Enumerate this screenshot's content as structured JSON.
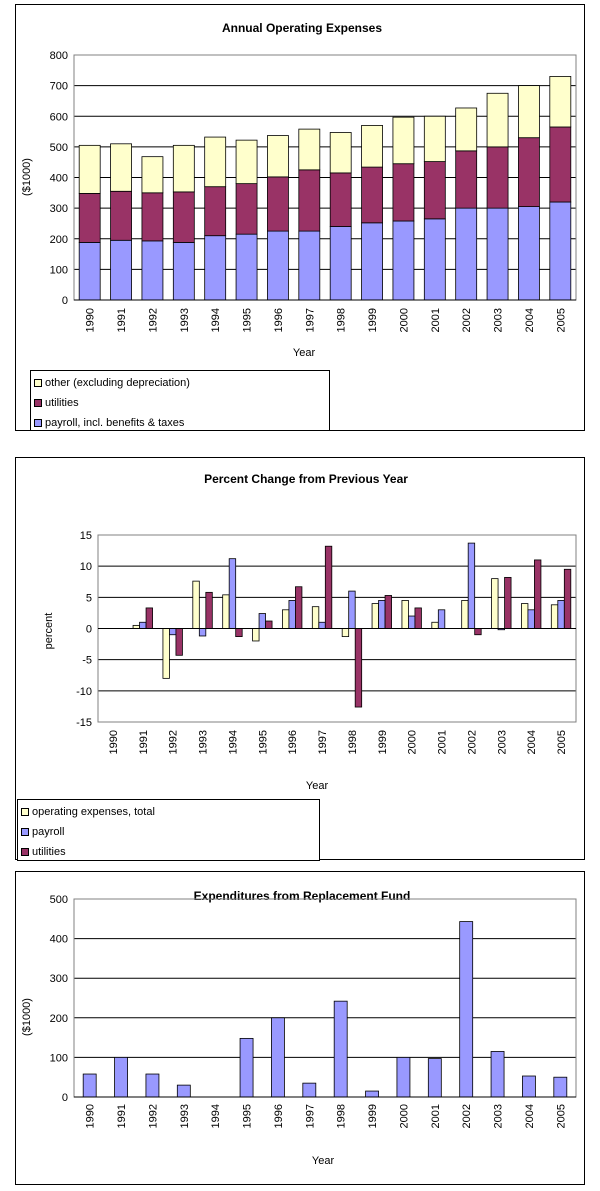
{
  "chart_data": [
    {
      "type": "bar",
      "stacked": true,
      "title": "Annual Operating Expenses",
      "xlabel": "Year",
      "ylabel": "($1000)",
      "ylim": [
        0,
        800
      ],
      "yticks": [
        0,
        100,
        200,
        300,
        400,
        500,
        600,
        700,
        800
      ],
      "grid": true,
      "legend_position": "bottom",
      "categories": [
        "1990",
        "1991",
        "1992",
        "1993",
        "1994",
        "1995",
        "1996",
        "1997",
        "1998",
        "1999",
        "2000",
        "2001",
        "2002",
        "2003",
        "2004",
        "2005"
      ],
      "series": [
        {
          "name": "payroll, incl. benefits & taxes",
          "color": "#9999ff",
          "values": [
            188,
            195,
            193,
            188,
            210,
            215,
            225,
            225,
            240,
            252,
            258,
            265,
            300,
            300,
            305,
            320
          ]
        },
        {
          "name": "utilities",
          "color": "#993366",
          "values": [
            160,
            160,
            157,
            165,
            160,
            165,
            177,
            200,
            175,
            182,
            187,
            187,
            187,
            200,
            225,
            245
          ]
        },
        {
          "name": "other (excluding depreciation)",
          "color": "#ffffcc",
          "values": [
            157,
            155,
            118,
            152,
            162,
            142,
            135,
            133,
            132,
            136,
            152,
            148,
            140,
            175,
            170,
            165
          ]
        }
      ]
    },
    {
      "type": "bar",
      "title": "Percent Change from Previous Year",
      "xlabel": "Year",
      "ylabel": "percent",
      "ylim": [
        -15,
        15
      ],
      "yticks": [
        -15,
        -10,
        -5,
        0,
        5,
        10,
        15
      ],
      "grid": true,
      "legend_position": "bottom",
      "categories": [
        "1990",
        "1991",
        "1992",
        "1993",
        "1994",
        "1995",
        "1996",
        "1997",
        "1998",
        "1999",
        "2000",
        "2001",
        "2002",
        "2003",
        "2004",
        "2005"
      ],
      "series": [
        {
          "name": "operating expenses, total",
          "color": "#ffffcc",
          "values": [
            0,
            0.5,
            -8,
            7.6,
            5.4,
            -2,
            3,
            3.5,
            -1.3,
            4,
            4.5,
            1,
            4.5,
            8,
            4,
            3.8
          ]
        },
        {
          "name": "payroll",
          "color": "#9999ff",
          "values": [
            0,
            1,
            -1,
            -1.2,
            11.2,
            2.4,
            4.5,
            1,
            6,
            4.5,
            2,
            3,
            13.7,
            -0.2,
            3,
            4.5
          ]
        },
        {
          "name": "utilities",
          "color": "#993366",
          "values": [
            0,
            3.3,
            -4.3,
            5.8,
            -1.3,
            1.2,
            6.7,
            13.2,
            -12.6,
            5.3,
            3.3,
            0,
            -1,
            8.2,
            11,
            9.5
          ]
        }
      ]
    },
    {
      "type": "bar",
      "title": "Expenditures from Replacement Fund",
      "xlabel": "Year",
      "ylabel": "($1000)",
      "ylim": [
        0,
        500
      ],
      "yticks": [
        0,
        100,
        200,
        300,
        400,
        500
      ],
      "grid": true,
      "categories": [
        "1990",
        "1991",
        "1992",
        "1993",
        "1994",
        "1995",
        "1996",
        "1997",
        "1998",
        "1999",
        "2000",
        "2001",
        "2002",
        "2003",
        "2004",
        "2005"
      ],
      "series": [
        {
          "color": "#9999ff",
          "values": [
            58,
            100,
            58,
            30,
            0,
            148,
            200,
            35,
            242,
            15,
            100,
            97,
            443,
            115,
            53,
            50
          ]
        }
      ]
    }
  ]
}
